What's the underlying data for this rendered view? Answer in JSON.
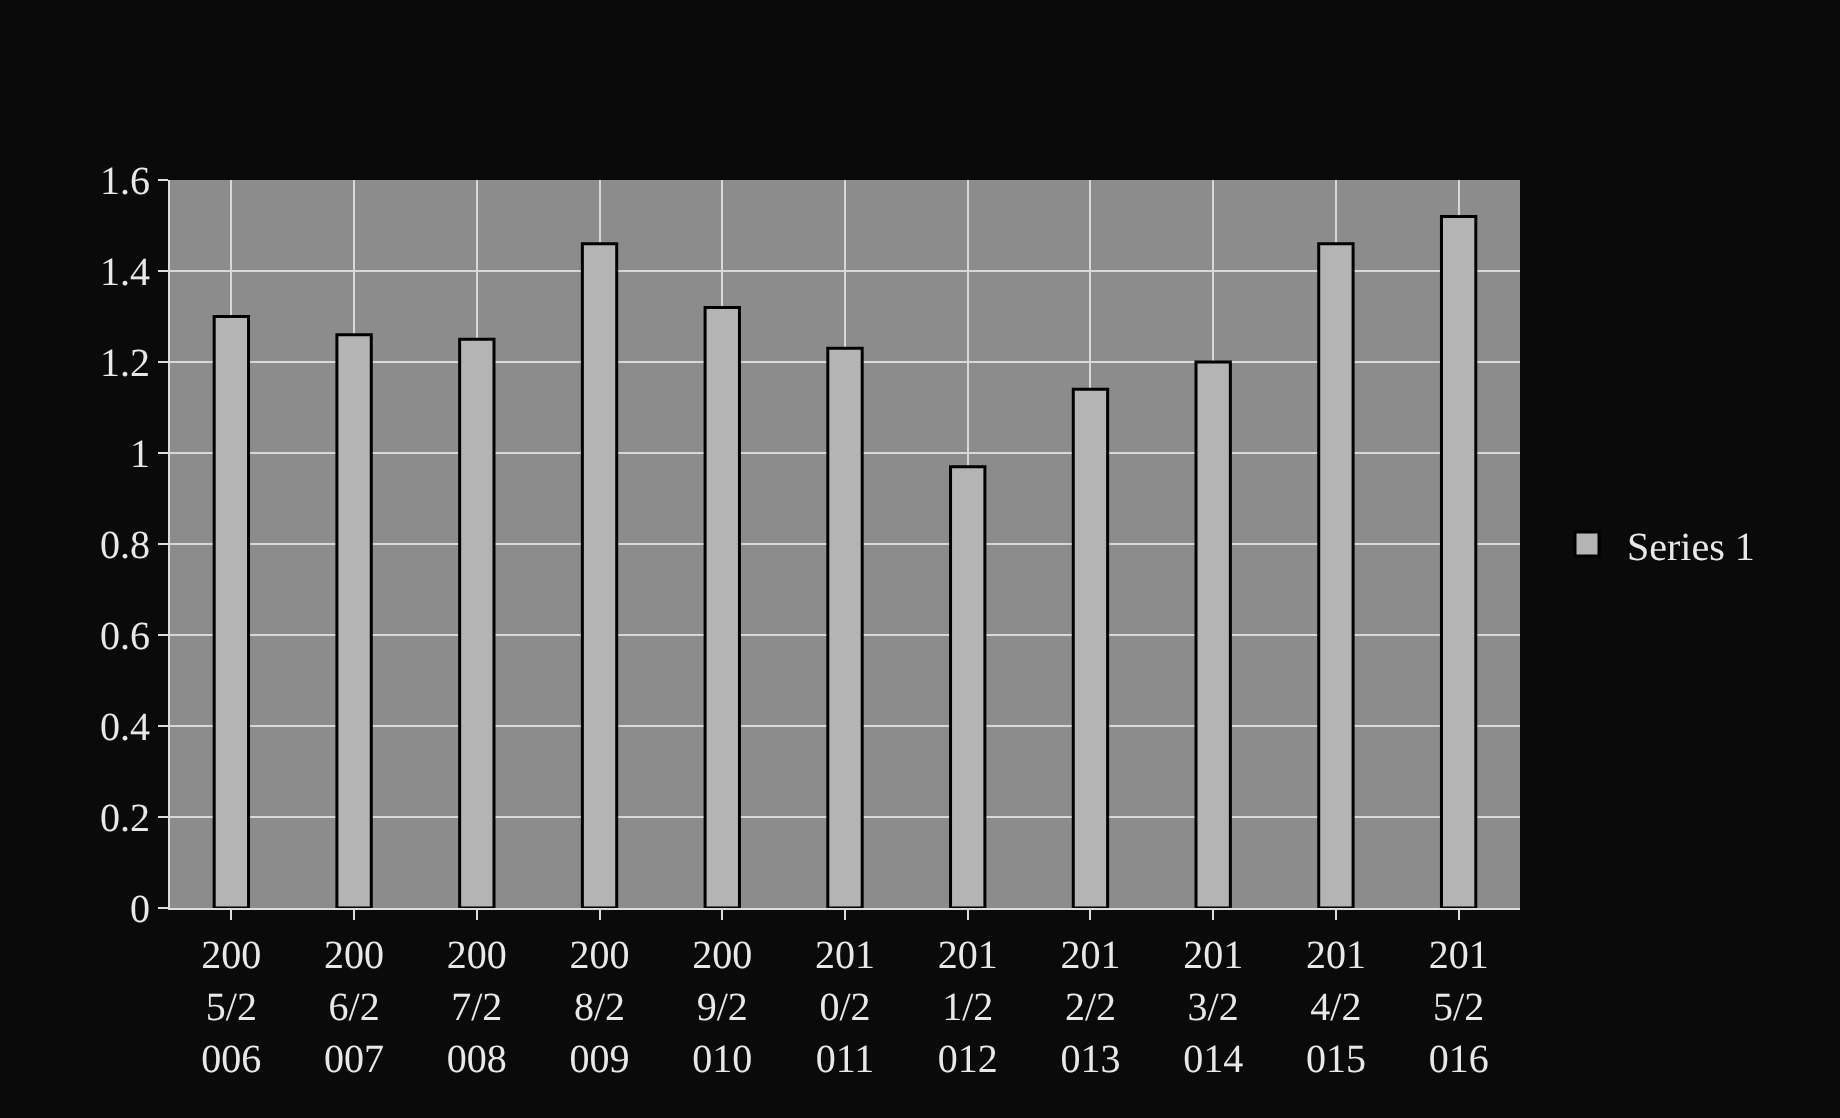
{
  "chart_data": {
    "type": "bar",
    "categories": [
      "2005/2006",
      "2006/2007",
      "2007/2008",
      "2008/2009",
      "2009/2010",
      "2010/2011",
      "2011/2012",
      "2012/2013",
      "2013/2014",
      "2014/2015",
      "2015/2016"
    ],
    "series": [
      {
        "name": "Series 1",
        "color": "#b4b4b4",
        "values": [
          1.3,
          1.26,
          1.25,
          1.46,
          1.32,
          1.23,
          0.97,
          1.14,
          1.2,
          1.46,
          1.52
        ]
      }
    ],
    "ylim": [
      0,
      1.6
    ],
    "yticks": [
      0,
      0.2,
      0.4,
      0.6,
      0.8,
      1,
      1.2,
      1.4,
      1.6
    ],
    "grid": true,
    "legend": "right"
  }
}
